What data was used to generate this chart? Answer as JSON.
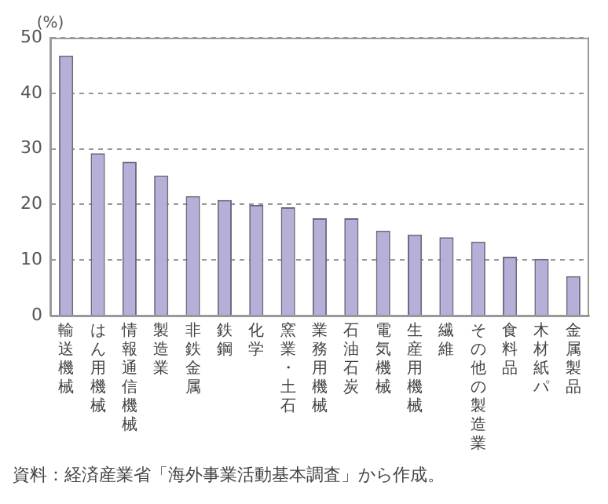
{
  "chart_data": {
    "type": "bar",
    "ylabel": "(%)",
    "categories": [
      "輸送機械",
      "はん用機械",
      "情報通信機械",
      "製造業",
      "非鉄金属",
      "鉄鋼",
      "化学",
      "窯業・土石",
      "業務用機械",
      "石油石炭",
      "電気機械",
      "生産用機械",
      "繊維",
      "その他の製造業",
      "食料品",
      "木材紙パ",
      "金属製品"
    ],
    "values": [
      46.8,
      29.2,
      27.7,
      25.2,
      21.5,
      20.8,
      19.9,
      19.5,
      17.5,
      17.5,
      15.3,
      14.6,
      14.1,
      13.3,
      10.6,
      10.2,
      7.1
    ],
    "color": "#b4b0d8",
    "ylim": [
      0,
      50
    ],
    "yticks": [
      0,
      10,
      20,
      30,
      40,
      50
    ],
    "grid": "y",
    "annotations": [
      "資料：経済産業省「海外事業活動基本調査」から作成。"
    ]
  }
}
